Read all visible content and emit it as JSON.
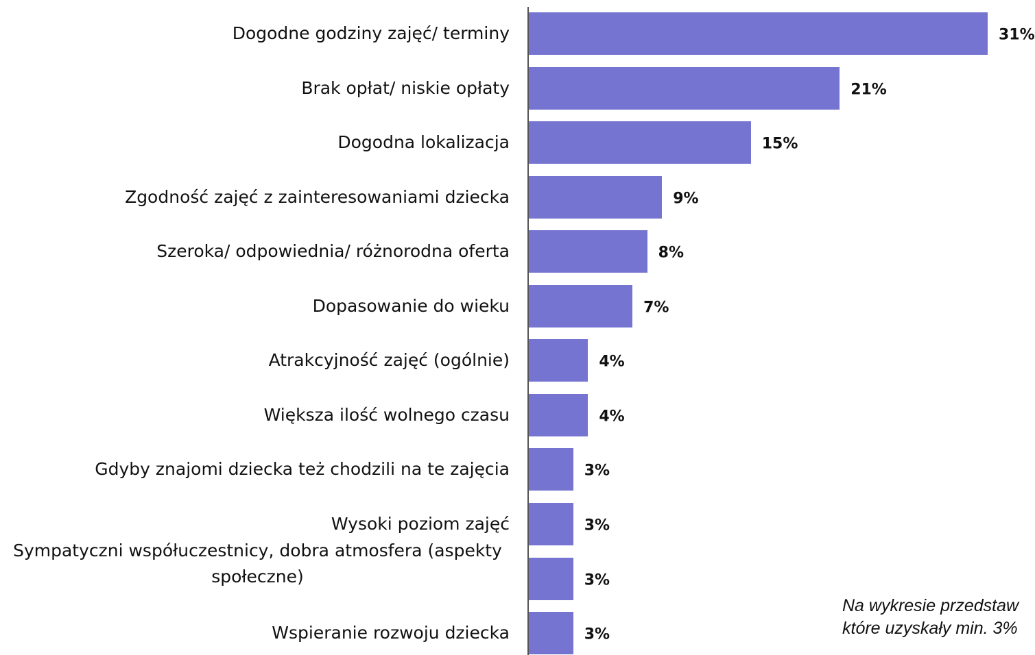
{
  "chart_data": {
    "type": "bar",
    "orientation": "horizontal",
    "categories": [
      "Dogodne godziny zajęć/ terminy",
      "Brak opłat/ niskie opłaty",
      "Dogodna lokalizacja",
      "Zgodność zajęć z zainteresowaniami dziecka",
      "Szeroka/ odpowiednia/ różnorodna oferta",
      "Dopasowanie do wieku",
      "Atrakcyjność zajęć (ogólnie)",
      "Większa ilość wolnego czasu",
      "Gdyby znajomi dziecka też chodzili na te zajęcia",
      "Wysoki poziom zajęć",
      "Sympatyczni współuczestnicy, dobra atmosfera (aspekty społeczne)",
      "Wspieranie rozwoju dziecka"
    ],
    "values": [
      31,
      21,
      15,
      9,
      8,
      7,
      4,
      4,
      3,
      3,
      3,
      3
    ],
    "value_labels": [
      "31%",
      "21%",
      "15%",
      "9%",
      "8%",
      "7%",
      "4%",
      "4%",
      "3%",
      "3%",
      "3%",
      "3%"
    ],
    "color": "#7575d1",
    "note": [
      "Na wykresie przedstaw",
      "które uzyskały min. 3%"
    ]
  }
}
